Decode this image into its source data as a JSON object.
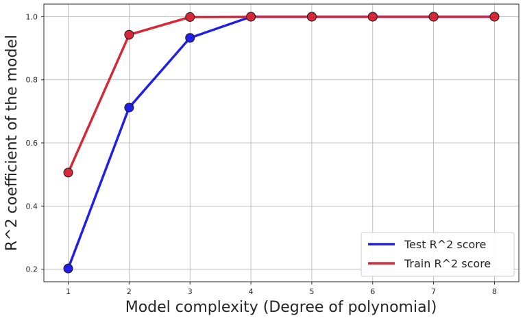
{
  "chart_data": {
    "type": "line",
    "title": "",
    "xlabel": "Model complexity (Degree of polynomial)",
    "ylabel": "R^2 coefficient of the model",
    "x": [
      1,
      2,
      3,
      4,
      5,
      6,
      7,
      8
    ],
    "xlim": [
      0.6,
      8.4
    ],
    "ylim": [
      0.16,
      1.04
    ],
    "xticks": [
      "1",
      "2",
      "3",
      "4",
      "5",
      "6",
      "7",
      "8"
    ],
    "yticks": [
      "0.2",
      "0.4",
      "0.6",
      "0.8",
      "1.0"
    ],
    "grid": true,
    "legend_position": "lower-right",
    "series": [
      {
        "name": "Test R^2 score",
        "color": "#1f1fe6",
        "values": [
          0.202,
          0.712,
          0.933,
          1.0,
          1.0,
          1.0,
          1.0,
          1.0
        ]
      },
      {
        "name": "Train R^2 score",
        "color": "#d62839",
        "values": [
          0.506,
          0.943,
          0.999,
          1.0,
          1.0,
          1.0,
          1.0,
          1.0
        ]
      }
    ]
  }
}
